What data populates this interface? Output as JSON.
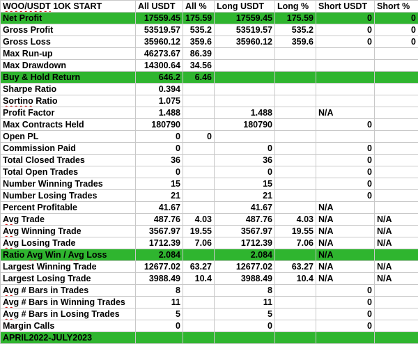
{
  "header": [
    "WOO/USDT 1OK START",
    "All USDT",
    "All %",
    "Long USDT",
    "Long %",
    "Short USDT",
    "Short %"
  ],
  "rows": [
    {
      "green": true,
      "cells": [
        "Net Profit",
        "17559.45",
        "175.59",
        "17559.45",
        "175.59",
        "0",
        "0"
      ]
    },
    {
      "green": false,
      "cells": [
        "Gross Profit",
        "53519.57",
        "535.2",
        "53519.57",
        "535.2",
        "0",
        "0"
      ]
    },
    {
      "green": false,
      "cells": [
        "Gross Loss",
        "35960.12",
        "359.6",
        "35960.12",
        "359.6",
        "0",
        "0"
      ]
    },
    {
      "green": false,
      "cells": [
        "Max Run-up",
        "46273.67",
        "86.39",
        "",
        "",
        "",
        ""
      ]
    },
    {
      "green": false,
      "cells": [
        "Max Drawdown",
        "14300.64",
        "34.56",
        "",
        "",
        "",
        ""
      ]
    },
    {
      "green": true,
      "cells": [
        "Buy & Hold Return",
        "646.2",
        "6.46",
        "",
        "",
        "",
        ""
      ]
    },
    {
      "green": false,
      "cells": [
        "Sharpe Ratio",
        "0.394",
        "",
        "",
        "",
        "",
        ""
      ]
    },
    {
      "green": false,
      "cells": [
        "Sortino Ratio",
        "1.075",
        "",
        "",
        "",
        "",
        ""
      ]
    },
    {
      "green": false,
      "cells": [
        "Profit Factor",
        "1.488",
        "",
        "1.488",
        "",
        "N/A",
        ""
      ]
    },
    {
      "green": false,
      "cells": [
        "Max Contracts Held",
        "180790",
        "",
        "180790",
        "",
        "0",
        ""
      ]
    },
    {
      "green": false,
      "cells": [
        "Open PL",
        "0",
        "0",
        "",
        "",
        "",
        ""
      ]
    },
    {
      "green": false,
      "cells": [
        "Commission Paid",
        "0",
        "",
        "0",
        "",
        "0",
        ""
      ]
    },
    {
      "green": false,
      "cells": [
        "Total Closed Trades",
        "36",
        "",
        "36",
        "",
        "0",
        ""
      ]
    },
    {
      "green": false,
      "cells": [
        "Total Open Trades",
        "0",
        "",
        "0",
        "",
        "0",
        ""
      ]
    },
    {
      "green": false,
      "cells": [
        "Number Winning Trades",
        "15",
        "",
        "15",
        "",
        "0",
        ""
      ]
    },
    {
      "green": false,
      "cells": [
        "Number Losing Trades",
        "21",
        "",
        "21",
        "",
        "0",
        ""
      ]
    },
    {
      "green": false,
      "cells": [
        "Percent Profitable",
        "41.67",
        "",
        "41.67",
        "",
        "N/A",
        ""
      ]
    },
    {
      "green": false,
      "cells": [
        "Avg Trade",
        "487.76",
        "4.03",
        "487.76",
        "4.03",
        "N/A",
        "N/A"
      ]
    },
    {
      "green": false,
      "cells": [
        "Avg Winning Trade",
        "3567.97",
        "19.55",
        "3567.97",
        "19.55",
        "N/A",
        "N/A"
      ]
    },
    {
      "green": false,
      "cells": [
        "Avg Losing Trade",
        "1712.39",
        "7.06",
        "1712.39",
        "7.06",
        "N/A",
        "N/A"
      ]
    },
    {
      "green": true,
      "cells": [
        "Ratio Avg Win / Avg Loss",
        "2.084",
        "",
        "2.084",
        "",
        "N/A",
        ""
      ]
    },
    {
      "green": false,
      "cells": [
        "Largest Winning Trade",
        "12677.02",
        "63.27",
        "12677.02",
        "63.27",
        "N/A",
        "N/A"
      ]
    },
    {
      "green": false,
      "cells": [
        "Largest Losing Trade",
        "3988.49",
        "10.4",
        "3988.49",
        "10.4",
        "N/A",
        "N/A"
      ]
    },
    {
      "green": false,
      "cells": [
        "Avg # Bars in Trades",
        "8",
        "",
        "8",
        "",
        "0",
        ""
      ]
    },
    {
      "green": false,
      "cells": [
        "Avg # Bars in Winning Trades",
        "11",
        "",
        "11",
        "",
        "0",
        ""
      ]
    },
    {
      "green": false,
      "cells": [
        "Avg # Bars in Losing Trades",
        "5",
        "",
        "5",
        "",
        "0",
        ""
      ]
    },
    {
      "green": false,
      "cells": [
        "Margin Calls",
        "0",
        "",
        "0",
        "",
        "0",
        ""
      ]
    },
    {
      "green": true,
      "cells": [
        "APRIL2022-JULY2023",
        "",
        "",
        "",
        "",
        "",
        ""
      ]
    }
  ],
  "colors": {
    "highlight": "#2fb52f",
    "grid": "#c8c8c8",
    "spellcheck": "#d00000"
  }
}
